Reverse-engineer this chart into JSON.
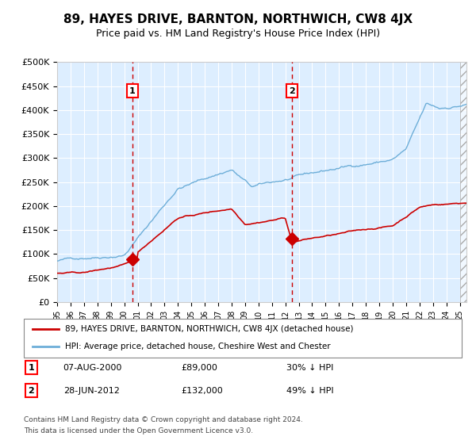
{
  "title": "89, HAYES DRIVE, BARNTON, NORTHWICH, CW8 4JX",
  "subtitle": "Price paid vs. HM Land Registry's House Price Index (HPI)",
  "legend_line1": "89, HAYES DRIVE, BARNTON, NORTHWICH, CW8 4JX (detached house)",
  "legend_line2": "HPI: Average price, detached house, Cheshire West and Chester",
  "transaction1_date": "07-AUG-2000",
  "transaction1_price": "£89,000",
  "transaction1_hpi": "30% ↓ HPI",
  "transaction1_year": 2000.6,
  "transaction1_value": 89000,
  "transaction2_date": "28-JUN-2012",
  "transaction2_price": "£132,000",
  "transaction2_hpi": "49% ↓ HPI",
  "transaction2_year": 2012.5,
  "transaction2_value": 132000,
  "footer1": "Contains HM Land Registry data © Crown copyright and database right 2024.",
  "footer2": "This data is licensed under the Open Government Licence v3.0.",
  "hpi_color": "#6daed8",
  "price_color": "#cc0000",
  "bg_color": "#ffffff",
  "plot_bg_color": "#ddeeff",
  "grid_color": "#ffffff",
  "vline_color": "#cc0000",
  "ylim": [
    0,
    500000
  ],
  "xlim_start": 1995.0,
  "xlim_end": 2025.5,
  "hatch_start": 2025.0
}
